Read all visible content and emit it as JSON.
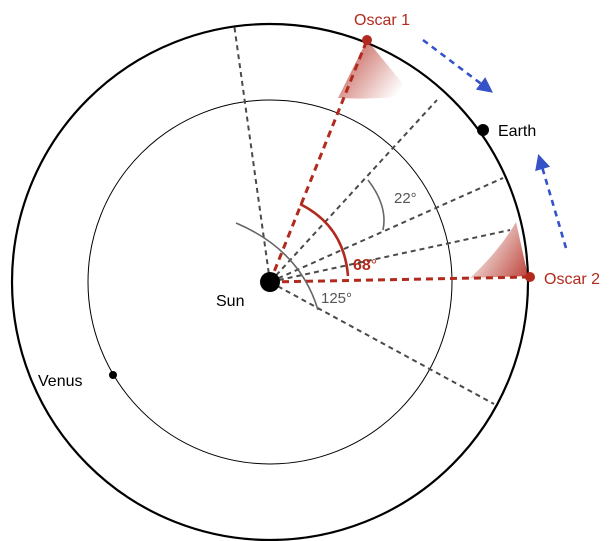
{
  "labels": {
    "oscar1": "Oscar 1",
    "oscar2": "Oscar 2",
    "earth": "Earth",
    "sun": "Sun",
    "venus": "Venus",
    "angle_22": "22°",
    "angle_68_num": "68",
    "angle_68_deg": "°",
    "angle_125": "125°"
  },
  "colors": {
    "red": "#b22a1e",
    "dark_gray": "#4a4a4a",
    "blue_arrow": "#3552c8",
    "angle_gray": "#666666"
  }
}
